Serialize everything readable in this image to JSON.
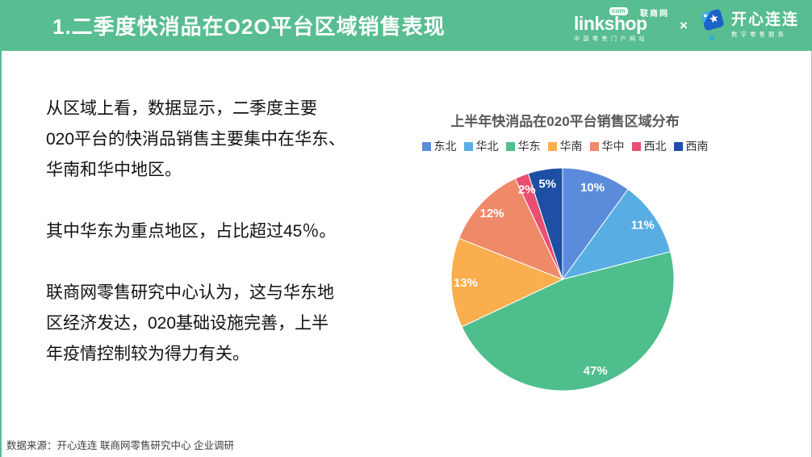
{
  "theme": {
    "header_green": "#58bd90",
    "title_text": "#ffffff",
    "body_text": "#121212",
    "chart_title_gray": "#595959"
  },
  "header": {
    "title": "1.二季度快消品在O2O平台区域销售表现",
    "linkshop_logo": {
      "brand": "linkshop",
      "com_badge": "com",
      "cn_name": "联商网",
      "tagline": "中国零售门户网站"
    },
    "separator": "×",
    "kaixin_logo": {
      "name": "开心连连",
      "tagline": "数字零售服务"
    }
  },
  "body": {
    "paragraph1": [
      "从区域上看，数据显示，二季度主要",
      "020平台的快消品销售主要集中在华东、",
      "华南和华中地区。"
    ],
    "paragraph2": [
      "其中华东为重点地区，占比超过45％。"
    ],
    "paragraph3": [
      "联商网零售研究中心认为，这与华东地",
      "区经济发达，020基础设施完善，上半",
      "年疫情控制较为得力有关。"
    ]
  },
  "chart_data": {
    "type": "pie",
    "title": "上半年快消品在020平台销售区域分布",
    "categories": [
      "东北",
      "华北",
      "华东",
      "华南",
      "华中",
      "西北",
      "西南"
    ],
    "values": [
      10,
      11,
      47,
      13,
      12,
      2,
      5
    ],
    "unit": "%",
    "colors": [
      "#5b8bdb",
      "#58aee3",
      "#4ebe8c",
      "#faae4d",
      "#ef8a69",
      "#e94f72",
      "#1d4fa4"
    ],
    "legend_position": "top",
    "start_angle": "top",
    "direction": "clockwise",
    "label_radius_ratio": 0.87
  },
  "footer": {
    "source": "数据来源：开心连连 联商网零售研究中心 企业调研"
  }
}
